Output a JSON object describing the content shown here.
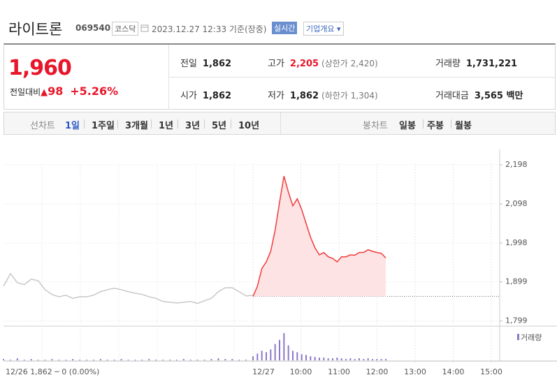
{
  "header": {
    "name": "라이트론",
    "code": "069540",
    "market": "코스닥",
    "timestamp": "2023.12.27 12:33 기준(장중)",
    "realtime": "실시간",
    "overview": "기업개요"
  },
  "summary": {
    "price": "1,960",
    "change_label": "전일대비",
    "change": "98",
    "change_pct": "+5.26%",
    "stats": [
      {
        "label": "전일",
        "value": "1,862"
      },
      {
        "label": "고가",
        "value": "2,205",
        "note": "(상한가 2,420)"
      },
      {
        "label": "거래량",
        "value": "1,731,221"
      },
      {
        "label": "시가",
        "value": "1,862"
      },
      {
        "label": "저가",
        "value": "1,862",
        "note": "(하한가 1,304)"
      },
      {
        "label": "거래대금",
        "value": "3,565 백만"
      }
    ]
  },
  "tabs": {
    "line_label": "선차트",
    "line_periods": [
      "1일",
      "1주일",
      "3개월",
      "1년",
      "3년",
      "5년",
      "10년"
    ],
    "candle_label": "봉차트",
    "candle_periods": [
      "일봉",
      "주봉",
      "월봉"
    ]
  },
  "chart": {
    "ylim": [
      1786,
      2237
    ],
    "yticks": [
      {
        "value": 2198,
        "label": "2,198"
      },
      {
        "value": 2098,
        "label": "2,098"
      },
      {
        "value": 1998,
        "label": "1,998"
      },
      {
        "value": 1899,
        "label": "1,899"
      },
      {
        "value": 1799,
        "label": "1,799"
      }
    ],
    "prev_close": 1862,
    "previous": {
      "color": "#c8c8c8",
      "values": [
        1888,
        1920,
        1897,
        1892,
        1906,
        1902,
        1879,
        1867,
        1861,
        1865,
        1857,
        1861,
        1861,
        1865,
        1874,
        1879,
        1883,
        1879,
        1874,
        1870,
        1867,
        1861,
        1857,
        1849,
        1847,
        1845,
        1847,
        1849,
        1844,
        1851,
        1857,
        1874,
        1884,
        1884,
        1874,
        1863,
        1865
      ]
    },
    "today": {
      "color": "#f23b3b",
      "fill": "#fde3e3",
      "values": [
        1862,
        1888,
        1933,
        1950,
        1977,
        2031,
        2102,
        2169,
        2128,
        2093,
        2111,
        2084,
        2048,
        2013,
        1986,
        1968,
        1974,
        1963,
        1959,
        1950,
        1963,
        1963,
        1968,
        1967,
        1974,
        1974,
        1981,
        1977,
        1974,
        1972,
        1960
      ]
    },
    "xlabels": [
      "12/27",
      "10:00",
      "11:00",
      "12:00",
      "13:00",
      "14:00",
      "15:00"
    ],
    "prev_info": "12/26 1,862 ─ 0 (0.00%)",
    "volume": {
      "label": "거래량",
      "color": "#8c78c8",
      "ylim": [
        0,
        45
      ],
      "previous": [
        2,
        1,
        3,
        1,
        2,
        1,
        1,
        2,
        1,
        1,
        2,
        1,
        1,
        1,
        2,
        1,
        1,
        2,
        1,
        1,
        1,
        2,
        1,
        1,
        1,
        1,
        2,
        1,
        1,
        1,
        2,
        3,
        2,
        2,
        1,
        1,
        1
      ],
      "today": [
        6,
        10,
        14,
        12,
        16,
        24,
        30,
        40,
        22,
        14,
        12,
        9,
        8,
        6,
        5,
        4,
        4,
        3,
        3,
        4,
        3,
        2,
        3,
        2,
        3,
        2,
        3,
        2,
        2,
        2,
        2
      ]
    }
  }
}
